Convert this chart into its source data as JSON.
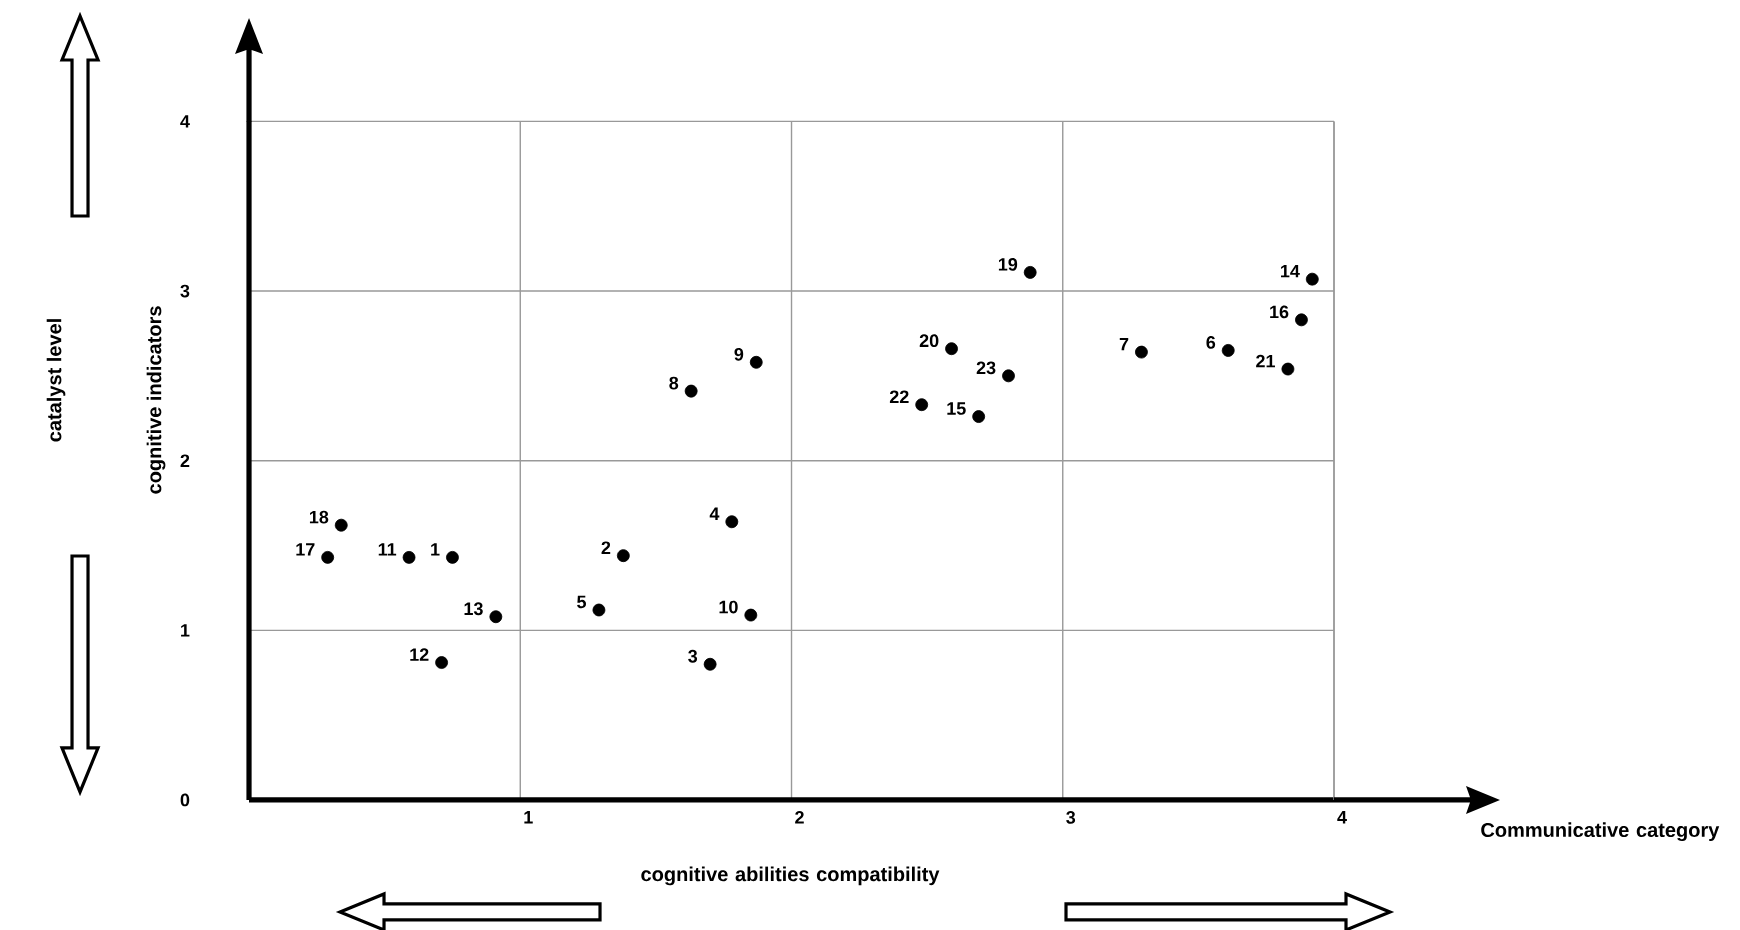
{
  "chart_data": {
    "type": "scatter",
    "ylabel": "cognitive indicators",
    "annotations": [
      "catalyst level",
      "cognitive abilities compatibility",
      "Communicative category",
      {
        "text": "1",
        "x": 0.75,
        "y": 1.43
      },
      {
        "text": "2",
        "x": 1.38,
        "y": 1.44
      },
      {
        "text": "3",
        "x": 1.7,
        "y": 0.8
      },
      {
        "text": "4",
        "x": 1.78,
        "y": 1.64
      },
      {
        "text": "5",
        "x": 1.29,
        "y": 1.12
      },
      {
        "text": "6",
        "x": 3.61,
        "y": 2.65
      },
      {
        "text": "7",
        "x": 3.29,
        "y": 2.64
      },
      {
        "text": "8",
        "x": 1.63,
        "y": 2.41
      },
      {
        "text": "9",
        "x": 1.87,
        "y": 2.58
      },
      {
        "text": "10",
        "x": 1.85,
        "y": 1.09
      },
      {
        "text": "11",
        "x": 0.59,
        "y": 1.43
      },
      {
        "text": "12",
        "x": 0.71,
        "y": 0.81
      },
      {
        "text": "13",
        "x": 0.91,
        "y": 1.08
      },
      {
        "text": "14",
        "x": 3.92,
        "y": 3.07
      },
      {
        "text": "15",
        "x": 2.69,
        "y": 2.26
      },
      {
        "text": "16",
        "x": 3.88,
        "y": 2.83
      },
      {
        "text": "17",
        "x": 0.29,
        "y": 1.43
      },
      {
        "text": "18",
        "x": 0.34,
        "y": 1.62
      },
      {
        "text": "19",
        "x": 2.88,
        "y": 3.11
      },
      {
        "text": "20",
        "x": 2.59,
        "y": 2.66
      },
      {
        "text": "21",
        "x": 3.83,
        "y": 2.54
      },
      {
        "text": "22",
        "x": 2.48,
        "y": 2.33
      },
      {
        "text": "23",
        "x": 2.8,
        "y": 2.5
      }
    ],
    "x": [
      0.75,
      1.38,
      1.7,
      1.78,
      1.29,
      3.61,
      3.29,
      1.63,
      1.87,
      1.85,
      0.59,
      0.71,
      0.91,
      3.92,
      2.69,
      3.88,
      0.29,
      0.34,
      2.88,
      2.59,
      3.83,
      2.48,
      2.8
    ],
    "values": [
      1.43,
      1.44,
      0.8,
      1.64,
      1.12,
      2.65,
      2.64,
      2.41,
      2.58,
      1.09,
      1.43,
      0.81,
      1.08,
      3.07,
      2.26,
      2.83,
      1.43,
      1.62,
      3.11,
      2.66,
      2.54,
      2.33,
      2.5
    ],
    "color": "#000000",
    "marker": "circle",
    "xlim": [
      0,
      4
    ],
    "xticks": [
      1,
      2,
      3,
      4
    ],
    "ylim": [
      0,
      4
    ],
    "yticks": [
      0,
      1,
      2,
      3,
      4
    ],
    "grid": true
  }
}
